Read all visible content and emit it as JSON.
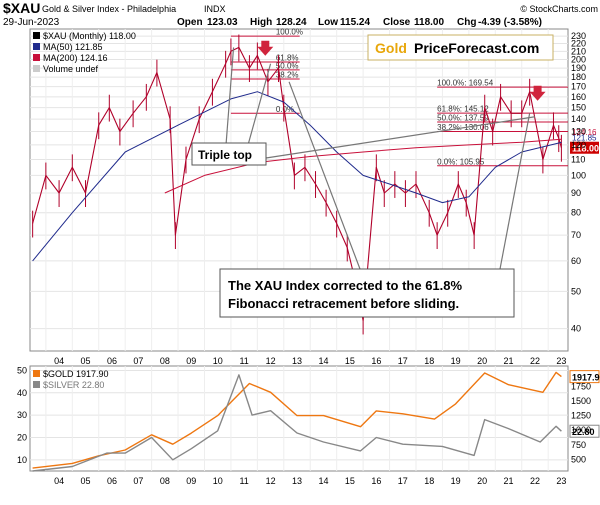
{
  "header": {
    "symbol": "$XAU",
    "name": "Gold & Silver Index - Philadelphia",
    "exchange": "INDX",
    "watermark": "© StockCharts.com",
    "date": "29-Jun-2023",
    "open_label": "Open",
    "open": "123.03",
    "high_label": "High",
    "high": "128.24",
    "low_label": "Low",
    "low": "115.24",
    "close_label": "Close",
    "close": "118.00",
    "chg_label": "Chg",
    "chg": "-4.39 (-3.58%)"
  },
  "legend_top": {
    "main": "$XAU (Monthly) 118.00",
    "ma50": "MA(50) 121.85",
    "ma200": "MA(200) 124.16",
    "volume": "Volume undef"
  },
  "brand": {
    "gold": "Gold",
    "rest": "PriceForecast.com"
  },
  "callouts": {
    "triple_top": "Triple top",
    "line1": "The XAU Index corrected to the 61.8%",
    "line2": "Fibonacci retracement before sliding."
  },
  "legend_bottom": {
    "gold": "$GOLD 1917.90",
    "silver": "$SILVER 22.80"
  },
  "colors": {
    "candle": "#b0002a",
    "ma50": "#1f2a8c",
    "ma200": "#c8103a",
    "gold": "#ee7711",
    "silver": "#888888",
    "arrow": "#d0243c",
    "brand_gold": "#e8a70b",
    "last_price_box": "#cc0000"
  },
  "chart_data": [
    {
      "type": "line",
      "title": "$XAU Gold & Silver Index - Philadelphia",
      "scale": "log",
      "ylim": [
        35,
        240
      ],
      "y_ticks": [
        40,
        50,
        60,
        70,
        80,
        90,
        100,
        110,
        120,
        130,
        140,
        150,
        160,
        170,
        180,
        190,
        200,
        210,
        220,
        230
      ],
      "x_ticks": [
        "04",
        "05",
        "06",
        "07",
        "08",
        "09",
        "10",
        "11",
        "12",
        "13",
        "14",
        "15",
        "16",
        "17",
        "18",
        "19",
        "20",
        "21",
        "22",
        "23"
      ],
      "last_price": "118.00",
      "last_price_labels": [
        "121.85",
        "124.16"
      ],
      "series": [
        {
          "name": "$XAU (Monthly)",
          "x": [
            2003.5,
            2004.0,
            2004.5,
            2005.0,
            2005.5,
            2006.0,
            2006.4,
            2006.8,
            2007.3,
            2007.8,
            2008.2,
            2008.7,
            2008.9,
            2009.3,
            2009.8,
            2010.3,
            2010.8,
            2011.0,
            2011.3,
            2011.7,
            2012.0,
            2012.4,
            2012.8,
            2013.0,
            2013.4,
            2013.8,
            2014.2,
            2014.6,
            2015.0,
            2015.4,
            2015.8,
            2016.0,
            2016.5,
            2016.8,
            2017.2,
            2017.6,
            2018.0,
            2018.5,
            2018.8,
            2019.2,
            2019.6,
            2019.9,
            2020.2,
            2020.6,
            2020.9,
            2021.2,
            2021.6,
            2022.0,
            2022.3,
            2022.8,
            2023.2,
            2023.4,
            2023.5
          ],
          "values": [
            75,
            100,
            90,
            105,
            90,
            135,
            150,
            130,
            145,
            160,
            185,
            140,
            70,
            110,
            140,
            165,
            195,
            210,
            215,
            190,
            205,
            175,
            190,
            150,
            100,
            105,
            95,
            85,
            75,
            65,
            50,
            42,
            105,
            90,
            95,
            90,
            95,
            80,
            70,
            80,
            95,
            85,
            70,
            150,
            130,
            160,
            145,
            145,
            165,
            110,
            135,
            125,
            118
          ]
        },
        {
          "name": "MA(50)",
          "x": [
            2003.5,
            2005,
            2007,
            2009,
            2011,
            2012,
            2013,
            2014,
            2015,
            2016,
            2017,
            2018,
            2019,
            2020,
            2021,
            2022,
            2023.5
          ],
          "values": [
            60,
            80,
            115,
            135,
            158,
            165,
            155,
            135,
            115,
            100,
            95,
            90,
            85,
            88,
            105,
            115,
            121.85
          ]
        },
        {
          "name": "MA(200)",
          "x": [
            2008.5,
            2010,
            2012,
            2014,
            2016,
            2018,
            2020,
            2022,
            2023.5
          ],
          "values": [
            90,
            100,
            108,
            112,
            115,
            118,
            120,
            122,
            124.16
          ]
        }
      ],
      "fibonacci_left": [
        {
          "label": "100.0%",
          "value": 230
        },
        {
          "label": "61.8%",
          "value": 197
        },
        {
          "label": "50.0%",
          "value": 188
        },
        {
          "label": "38.2%",
          "value": 178
        },
        {
          "label": "0.0%",
          "value": 145
        }
      ],
      "fibonacci_right": [
        {
          "label": "100.0%: 169.54",
          "value": 169.54
        },
        {
          "label": "61.8%: 145.12",
          "value": 145.12
        },
        {
          "label": "50.0%: 137.59",
          "value": 137.59
        },
        {
          "label": "38.2%: 130.06",
          "value": 130.06
        },
        {
          "label": "0.0%: 105.95",
          "value": 105.95
        }
      ]
    },
    {
      "type": "line",
      "y_ticks_left": [
        10,
        20,
        30,
        40,
        50
      ],
      "y_ticks_right": [
        500,
        750,
        1000,
        1250,
        1500,
        1750
      ],
      "x_ticks": [
        "04",
        "05",
        "06",
        "07",
        "08",
        "09",
        "10",
        "11",
        "12",
        "13",
        "14",
        "15",
        "16",
        "17",
        "18",
        "19",
        "20",
        "21",
        "22",
        "23"
      ],
      "series": [
        {
          "name": "$GOLD",
          "axis": "right",
          "last": "1917.90",
          "x": [
            2003.5,
            2005,
            2006,
            2007,
            2008,
            2008.8,
            2009.5,
            2010.5,
            2011.7,
            2012.5,
            2013.5,
            2014.5,
            2015.9,
            2016.5,
            2017.5,
            2018.7,
            2019.5,
            2020.6,
            2021.5,
            2022.8,
            2023.3,
            2023.5
          ],
          "values": [
            350,
            430,
            560,
            660,
            920,
            760,
            950,
            1250,
            1800,
            1650,
            1250,
            1250,
            1060,
            1330,
            1280,
            1190,
            1450,
            1980,
            1780,
            1650,
            1990,
            1917.9
          ]
        },
        {
          "name": "$SILVER",
          "axis": "left",
          "last": "22.80",
          "x": [
            2003.5,
            2005,
            2006.3,
            2007,
            2008,
            2008.8,
            2009.5,
            2010.5,
            2011.3,
            2011.8,
            2012.5,
            2013.5,
            2014.5,
            2015.9,
            2016.5,
            2017.5,
            2019,
            2020.2,
            2020.6,
            2021.5,
            2022.7,
            2023.3,
            2023.5
          ],
          "values": [
            5,
            7,
            13,
            13,
            20,
            10,
            15,
            23,
            48,
            30,
            32,
            22,
            18,
            14,
            20,
            17,
            16,
            12,
            28,
            24,
            18,
            25,
            22.8
          ]
        }
      ]
    }
  ]
}
